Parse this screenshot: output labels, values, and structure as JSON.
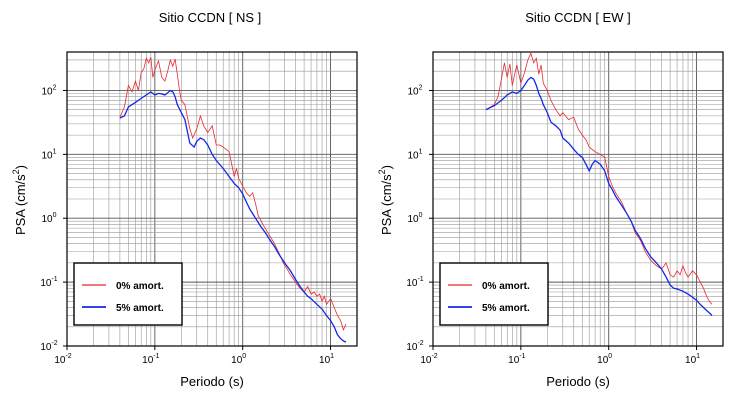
{
  "chart_data": [
    {
      "type": "line",
      "title": "Sitio CCDN [ NS ]",
      "xlabel": "Periodo (s)",
      "ylabel_main": "PSA (cm/s",
      "ylabel_sup": "2",
      "ylabel_end": ")",
      "xscale": "log",
      "yscale": "log",
      "xlim": [
        0.01,
        20
      ],
      "ylim": [
        0.01,
        400
      ],
      "grid": true,
      "legend_position": "bottom-left",
      "xticks": [
        {
          "base": "10",
          "exp": "-2",
          "value": 0.01
        },
        {
          "base": "10",
          "exp": "-1",
          "value": 0.1
        },
        {
          "base": "10",
          "exp": "0",
          "value": 1
        },
        {
          "base": "10",
          "exp": "1",
          "value": 10
        }
      ],
      "yticks": [
        {
          "base": "10",
          "exp": "-2",
          "value": 0.01
        },
        {
          "base": "10",
          "exp": "-1",
          "value": 0.1
        },
        {
          "base": "10",
          "exp": "0",
          "value": 1
        },
        {
          "base": "10",
          "exp": "1",
          "value": 10
        },
        {
          "base": "10",
          "exp": "2",
          "value": 100
        }
      ],
      "series": [
        {
          "name": "0% amort.",
          "color": "#e8282d",
          "points": [
            [
              0.04,
              38
            ],
            [
              0.045,
              55
            ],
            [
              0.05,
              120
            ],
            [
              0.055,
              95
            ],
            [
              0.06,
              140
            ],
            [
              0.065,
              100
            ],
            [
              0.07,
              190
            ],
            [
              0.075,
              220
            ],
            [
              0.08,
              320
            ],
            [
              0.085,
              270
            ],
            [
              0.09,
              330
            ],
            [
              0.095,
              160
            ],
            [
              0.1,
              210
            ],
            [
              0.11,
              290
            ],
            [
              0.12,
              160
            ],
            [
              0.13,
              140
            ],
            [
              0.14,
              200
            ],
            [
              0.15,
              300
            ],
            [
              0.16,
              240
            ],
            [
              0.17,
              310
            ],
            [
              0.18,
              180
            ],
            [
              0.19,
              105
            ],
            [
              0.2,
              70
            ],
            [
              0.22,
              60
            ],
            [
              0.25,
              25
            ],
            [
              0.27,
              18
            ],
            [
              0.3,
              25
            ],
            [
              0.33,
              40
            ],
            [
              0.36,
              28
            ],
            [
              0.4,
              22
            ],
            [
              0.45,
              28
            ],
            [
              0.5,
              14
            ],
            [
              0.55,
              14
            ],
            [
              0.6,
              13
            ],
            [
              0.7,
              11
            ],
            [
              0.8,
              4.5
            ],
            [
              0.85,
              6
            ],
            [
              0.9,
              4.2
            ],
            [
              1,
              3.2
            ],
            [
              1.1,
              2.5
            ],
            [
              1.2,
              2.2
            ],
            [
              1.3,
              2.5
            ],
            [
              1.4,
              1.7
            ],
            [
              1.5,
              1.1
            ],
            [
              1.7,
              0.8
            ],
            [
              2,
              0.55
            ],
            [
              2.3,
              0.4
            ],
            [
              2.6,
              0.28
            ],
            [
              2.9,
              0.2
            ],
            [
              3.2,
              0.16
            ],
            [
              3.5,
              0.13
            ],
            [
              4,
              0.1
            ],
            [
              4.5,
              0.08
            ],
            [
              5,
              0.07
            ],
            [
              5.5,
              0.085
            ],
            [
              6,
              0.065
            ],
            [
              6.5,
              0.07
            ],
            [
              7,
              0.06
            ],
            [
              7.5,
              0.065
            ],
            [
              8,
              0.05
            ],
            [
              8.5,
              0.06
            ],
            [
              9,
              0.045
            ],
            [
              10,
              0.055
            ],
            [
              11,
              0.04
            ],
            [
              12,
              0.03
            ],
            [
              13,
              0.025
            ],
            [
              14,
              0.018
            ],
            [
              15,
              0.022
            ]
          ]
        },
        {
          "name": "5% amort.",
          "color": "#1428e6",
          "points": [
            [
              0.04,
              37
            ],
            [
              0.045,
              40
            ],
            [
              0.05,
              55
            ],
            [
              0.06,
              65
            ],
            [
              0.07,
              75
            ],
            [
              0.08,
              85
            ],
            [
              0.09,
              95
            ],
            [
              0.1,
              85
            ],
            [
              0.11,
              90
            ],
            [
              0.12,
              88
            ],
            [
              0.13,
              85
            ],
            [
              0.14,
              92
            ],
            [
              0.15,
              100
            ],
            [
              0.16,
              95
            ],
            [
              0.17,
              80
            ],
            [
              0.18,
              60
            ],
            [
              0.19,
              52
            ],
            [
              0.2,
              45
            ],
            [
              0.22,
              35
            ],
            [
              0.25,
              15
            ],
            [
              0.28,
              13
            ],
            [
              0.3,
              16
            ],
            [
              0.33,
              18
            ],
            [
              0.36,
              17
            ],
            [
              0.4,
              14
            ],
            [
              0.45,
              10
            ],
            [
              0.5,
              8
            ],
            [
              0.6,
              6
            ],
            [
              0.7,
              4.5
            ],
            [
              0.8,
              3.5
            ],
            [
              0.9,
              3
            ],
            [
              1,
              2.4
            ],
            [
              1.1,
              1.8
            ],
            [
              1.2,
              1.4
            ],
            [
              1.4,
              1
            ],
            [
              1.6,
              0.75
            ],
            [
              1.8,
              0.6
            ],
            [
              2,
              0.48
            ],
            [
              2.3,
              0.36
            ],
            [
              2.6,
              0.27
            ],
            [
              3,
              0.2
            ],
            [
              3.5,
              0.15
            ],
            [
              4,
              0.11
            ],
            [
              4.5,
              0.085
            ],
            [
              5,
              0.07
            ],
            [
              5.5,
              0.06
            ],
            [
              6,
              0.055
            ],
            [
              7,
              0.045
            ],
            [
              8,
              0.038
            ],
            [
              9,
              0.03
            ],
            [
              10,
              0.025
            ],
            [
              11,
              0.02
            ],
            [
              12,
              0.015
            ],
            [
              13,
              0.013
            ],
            [
              14,
              0.012
            ],
            [
              15,
              0.0115
            ]
          ]
        }
      ]
    },
    {
      "type": "line",
      "title": "Sitio CCDN [ EW ]",
      "xlabel": "Periodo (s)",
      "ylabel_main": "PSA (cm/s",
      "ylabel_sup": "2",
      "ylabel_end": ")",
      "xscale": "log",
      "yscale": "log",
      "xlim": [
        0.01,
        20
      ],
      "ylim": [
        0.01,
        400
      ],
      "grid": true,
      "legend_position": "bottom-left",
      "xticks": [
        {
          "base": "10",
          "exp": "-2",
          "value": 0.01
        },
        {
          "base": "10",
          "exp": "-1",
          "value": 0.1
        },
        {
          "base": "10",
          "exp": "0",
          "value": 1
        },
        {
          "base": "10",
          "exp": "1",
          "value": 10
        }
      ],
      "yticks": [
        {
          "base": "10",
          "exp": "-2",
          "value": 0.01
        },
        {
          "base": "10",
          "exp": "-1",
          "value": 0.1
        },
        {
          "base": "10",
          "exp": "0",
          "value": 1
        },
        {
          "base": "10",
          "exp": "1",
          "value": 10
        },
        {
          "base": "10",
          "exp": "2",
          "value": 100
        }
      ],
      "series": [
        {
          "name": "0% amort.",
          "color": "#e8282d",
          "points": [
            [
              0.04,
              50
            ],
            [
              0.045,
              55
            ],
            [
              0.05,
              60
            ],
            [
              0.055,
              80
            ],
            [
              0.06,
              150
            ],
            [
              0.065,
              270
            ],
            [
              0.07,
              160
            ],
            [
              0.075,
              260
            ],
            [
              0.08,
              120
            ],
            [
              0.085,
              180
            ],
            [
              0.09,
              250
            ],
            [
              0.1,
              130
            ],
            [
              0.11,
              190
            ],
            [
              0.12,
              300
            ],
            [
              0.13,
              380
            ],
            [
              0.14,
              270
            ],
            [
              0.15,
              320
            ],
            [
              0.16,
              180
            ],
            [
              0.17,
              250
            ],
            [
              0.18,
              130
            ],
            [
              0.2,
              100
            ],
            [
              0.22,
              70
            ],
            [
              0.25,
              50
            ],
            [
              0.28,
              40
            ],
            [
              0.3,
              45
            ],
            [
              0.35,
              35
            ],
            [
              0.4,
              38
            ],
            [
              0.45,
              25
            ],
            [
              0.5,
              20
            ],
            [
              0.55,
              17
            ],
            [
              0.6,
              13
            ],
            [
              0.7,
              11
            ],
            [
              0.8,
              10
            ],
            [
              0.9,
              9
            ],
            [
              1,
              4.5
            ],
            [
              1.1,
              3.2
            ],
            [
              1.2,
              2.5
            ],
            [
              1.4,
              1.8
            ],
            [
              1.6,
              1.2
            ],
            [
              1.8,
              0.9
            ],
            [
              2,
              0.6
            ],
            [
              2.3,
              0.45
            ],
            [
              2.6,
              0.3
            ],
            [
              3,
              0.22
            ],
            [
              3.5,
              0.18
            ],
            [
              4,
              0.16
            ],
            [
              4.5,
              0.2
            ],
            [
              5,
              0.13
            ],
            [
              5.5,
              0.12
            ],
            [
              6,
              0.15
            ],
            [
              6.5,
              0.13
            ],
            [
              7,
              0.18
            ],
            [
              7.5,
              0.14
            ],
            [
              8,
              0.12
            ],
            [
              9,
              0.15
            ],
            [
              10,
              0.13
            ],
            [
              11,
              0.1
            ],
            [
              12,
              0.08
            ],
            [
              13,
              0.06
            ],
            [
              14,
              0.05
            ],
            [
              15,
              0.045
            ]
          ]
        },
        {
          "name": "5% amort.",
          "color": "#1428e6",
          "points": [
            [
              0.04,
              50
            ],
            [
              0.05,
              58
            ],
            [
              0.06,
              70
            ],
            [
              0.07,
              85
            ],
            [
              0.08,
              95
            ],
            [
              0.09,
              90
            ],
            [
              0.1,
              100
            ],
            [
              0.11,
              120
            ],
            [
              0.12,
              145
            ],
            [
              0.13,
              160
            ],
            [
              0.14,
              150
            ],
            [
              0.15,
              120
            ],
            [
              0.16,
              90
            ],
            [
              0.17,
              75
            ],
            [
              0.18,
              60
            ],
            [
              0.2,
              45
            ],
            [
              0.22,
              32
            ],
            [
              0.25,
              28
            ],
            [
              0.28,
              24
            ],
            [
              0.3,
              18
            ],
            [
              0.35,
              15
            ],
            [
              0.4,
              12
            ],
            [
              0.45,
              10
            ],
            [
              0.5,
              9
            ],
            [
              0.55,
              7
            ],
            [
              0.6,
              5.5
            ],
            [
              0.65,
              7
            ],
            [
              0.7,
              8
            ],
            [
              0.8,
              7
            ],
            [
              0.9,
              5.5
            ],
            [
              1,
              3.5
            ],
            [
              1.1,
              2.8
            ],
            [
              1.2,
              2.2
            ],
            [
              1.4,
              1.6
            ],
            [
              1.6,
              1.2
            ],
            [
              1.8,
              0.9
            ],
            [
              2,
              0.65
            ],
            [
              2.3,
              0.48
            ],
            [
              2.6,
              0.34
            ],
            [
              3,
              0.25
            ],
            [
              3.5,
              0.2
            ],
            [
              4,
              0.16
            ],
            [
              4.5,
              0.12
            ],
            [
              5,
              0.09
            ],
            [
              5.5,
              0.08
            ],
            [
              6,
              0.078
            ],
            [
              7,
              0.072
            ],
            [
              8,
              0.065
            ],
            [
              9,
              0.058
            ],
            [
              10,
              0.052
            ],
            [
              11,
              0.045
            ],
            [
              12,
              0.04
            ],
            [
              13,
              0.036
            ],
            [
              14,
              0.033
            ],
            [
              15,
              0.03
            ]
          ]
        }
      ]
    }
  ]
}
